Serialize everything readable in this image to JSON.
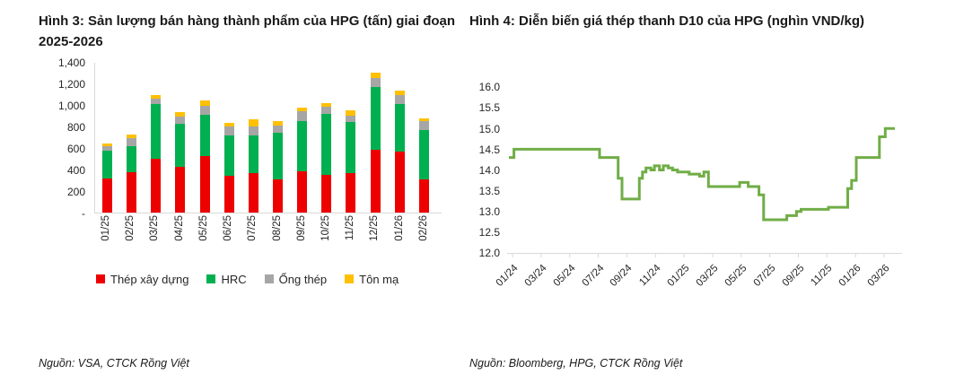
{
  "left_panel": {
    "title": "Hình 3: Sản lượng bán hàng thành phẩm của HPG (tấn) giai đoạn 2025-2026",
    "source": "Nguồn: VSA, CTCK Rồng Việt"
  },
  "right_panel": {
    "title": "Hình 4: Diễn biến giá thép thanh D10 của HPG (nghìn VND/kg)",
    "source": "Nguồn: Bloomberg, HPG, CTCK Rồng Việt"
  },
  "chart_data": [
    {
      "type": "bar",
      "stacked": true,
      "title": "Hình 3: Sản lượng bán hàng thành phẩm của HPG (tấn) giai đoạn 2025-2026",
      "categories": [
        "01/25",
        "02/25",
        "03/25",
        "04/25",
        "05/25",
        "06/25",
        "07/25",
        "08/25",
        "09/25",
        "10/25",
        "11/25",
        "12/25",
        "01/26",
        "02/26"
      ],
      "series": [
        {
          "name": "Thép xây dựng",
          "color": "#ED0000",
          "values": [
            310,
            375,
            500,
            425,
            525,
            335,
            360,
            305,
            380,
            350,
            365,
            580,
            560,
            305
          ]
        },
        {
          "name": "HRC",
          "color": "#00B050",
          "values": [
            260,
            240,
            505,
            400,
            380,
            380,
            355,
            430,
            465,
            565,
            470,
            580,
            445,
            460
          ]
        },
        {
          "name": "Ống thép",
          "color": "#A6A6A6",
          "values": [
            45,
            75,
            50,
            60,
            80,
            80,
            80,
            70,
            90,
            65,
            60,
            90,
            80,
            85
          ]
        },
        {
          "name": "Tôn mạ",
          "color": "#FFC000",
          "values": [
            25,
            35,
            35,
            45,
            50,
            35,
            65,
            40,
            40,
            30,
            50,
            50,
            45,
            20
          ]
        }
      ],
      "ylim": [
        0,
        1400
      ],
      "y_tick_labels": [
        "1,400",
        "1,200",
        "1,000",
        "800",
        "600",
        "400",
        "200",
        "-"
      ],
      "grid": false,
      "legend_position": "bottom",
      "axis_color": "#D9D9D9"
    },
    {
      "type": "line",
      "title": "Hình 4: Diễn biến giá thép thanh D10 của HPG (nghìn VND/kg)",
      "line_color": "#70AD47",
      "line_width": 3,
      "ylim": [
        12.0,
        16.0
      ],
      "y_tick_labels": [
        "16.0",
        "15.5",
        "15.0",
        "14.5",
        "14.0",
        "13.5",
        "13.0",
        "12.5",
        "12.0"
      ],
      "x_tick_labels": [
        "01/24",
        "03/24",
        "05/24",
        "07/24",
        "09/24",
        "11/24",
        "01/25",
        "03/25",
        "05/25",
        "07/25",
        "09/25",
        "11/25",
        "01/26",
        "03/26"
      ],
      "grid": false,
      "legend_position": "none",
      "axis_color": "#D9D9D9",
      "points": [
        [
          0.0,
          14.3
        ],
        [
          0.013,
          14.5
        ],
        [
          0.235,
          14.3
        ],
        [
          0.283,
          13.8
        ],
        [
          0.293,
          13.3
        ],
        [
          0.338,
          13.8
        ],
        [
          0.346,
          13.95
        ],
        [
          0.355,
          14.05
        ],
        [
          0.368,
          14.0
        ],
        [
          0.377,
          14.1
        ],
        [
          0.39,
          14.0
        ],
        [
          0.4,
          14.1
        ],
        [
          0.413,
          14.05
        ],
        [
          0.424,
          14.0
        ],
        [
          0.437,
          13.95
        ],
        [
          0.467,
          13.9
        ],
        [
          0.494,
          13.85
        ],
        [
          0.505,
          13.95
        ],
        [
          0.517,
          13.6
        ],
        [
          0.598,
          13.7
        ],
        [
          0.62,
          13.6
        ],
        [
          0.648,
          13.4
        ],
        [
          0.66,
          12.8
        ],
        [
          0.72,
          12.9
        ],
        [
          0.745,
          13.0
        ],
        [
          0.757,
          13.05
        ],
        [
          0.828,
          13.1
        ],
        [
          0.878,
          13.55
        ],
        [
          0.888,
          13.75
        ],
        [
          0.9,
          14.3
        ],
        [
          0.96,
          14.8
        ],
        [
          0.975,
          15.0
        ],
        [
          1.0,
          15.0
        ]
      ]
    }
  ]
}
